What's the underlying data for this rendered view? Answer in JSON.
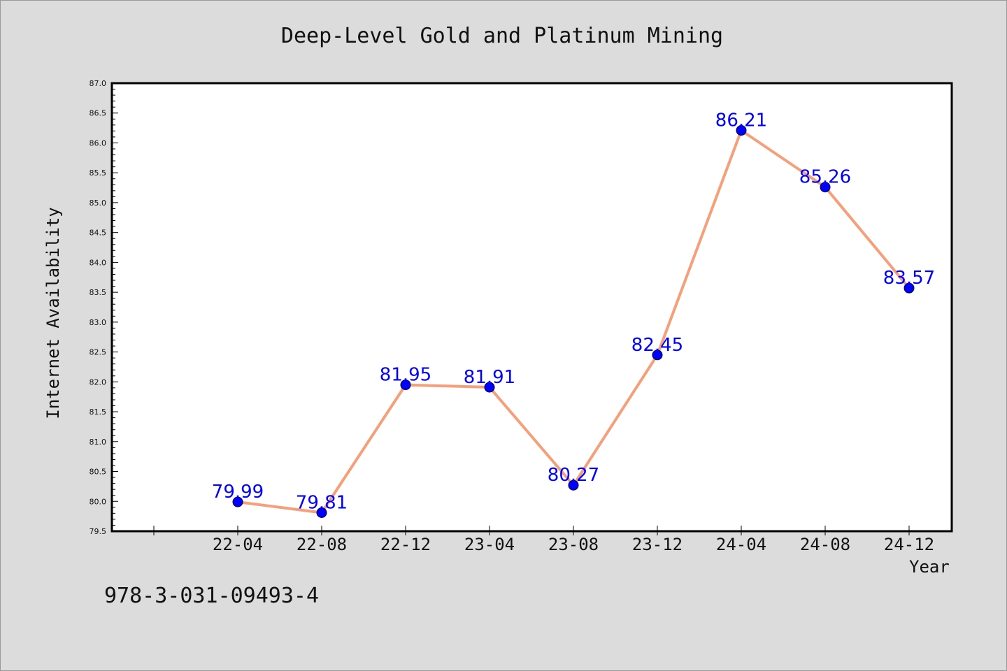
{
  "chart_data": {
    "type": "line",
    "title": "Deep-Level Gold and Platinum Mining",
    "xlabel": "Year",
    "ylabel": "Internet Availability",
    "categories": [
      "22-04",
      "22-08",
      "22-12",
      "23-04",
      "23-08",
      "23-12",
      "24-04",
      "24-08",
      "24-12"
    ],
    "series": [
      {
        "values": [
          79.99,
          79.81,
          81.95,
          81.91,
          80.27,
          82.45,
          86.21,
          85.26,
          83.57
        ],
        "line_color": "#f5a07a",
        "marker_color": "#0000ff",
        "label_color": "#0000ff"
      }
    ],
    "data_labels": [
      "79.99",
      "79.81",
      "81.95",
      "81.91",
      "80.27",
      "82.45",
      "86.21",
      "85.26",
      "83.57"
    ],
    "ylim": [
      79.5,
      87.0
    ],
    "ytick_labels": [
      "79.5",
      "80.0",
      "80.5",
      "81.0",
      "81.5",
      "82.0",
      "82.5",
      "83.0",
      "83.5",
      "84.0",
      "84.5",
      "85.0",
      "85.5",
      "86.0",
      "86.5",
      "87.0"
    ],
    "grid": false,
    "legend": "none"
  },
  "annotation": {
    "isbn": "978-3-031-09493-4"
  }
}
